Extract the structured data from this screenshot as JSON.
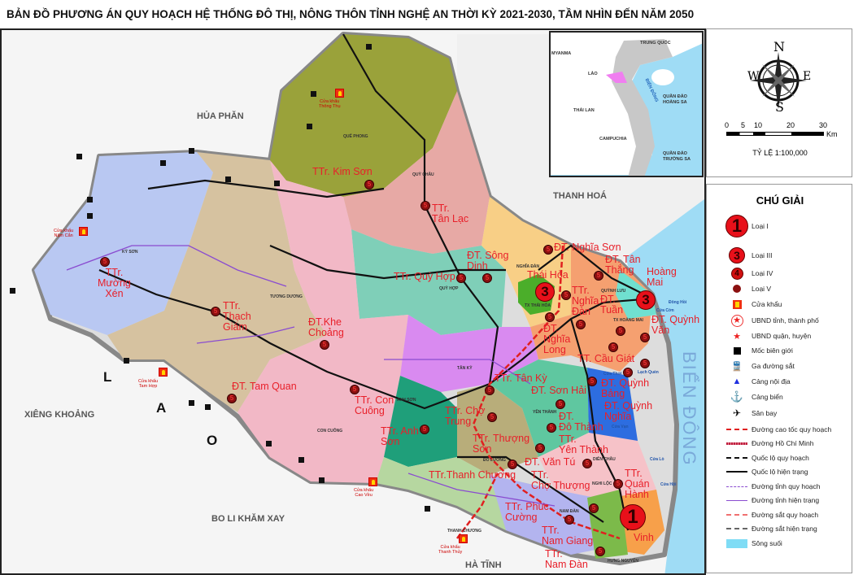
{
  "title": "BẢN ĐỒ PHƯƠNG ÁN QUY HOẠCH HỆ THỐNG ĐÔ THỊ, NÔNG THÔN TỈNH NGHỆ AN THỜI KỲ 2021-2030, TẦM NHÌN ĐẾN NĂM 2050",
  "neighbors": {
    "hua_phan": "HỦA PHĂN",
    "thanh_hoa": "THANH HOÁ",
    "xieng_khoang": "XIÊNG KHOẢNG",
    "bo_li": "BO LI KHĂM XAY",
    "ha_tinh": "HÀ TĨNH",
    "lao": [
      "L",
      "A",
      "O"
    ],
    "bien_dong": "BIỂN ĐÔNG"
  },
  "districts": [
    "QUẾ PHONG",
    "QUỲ CHÂU",
    "KỲ SƠN",
    "TƯƠNG DƯƠNG",
    "QUỲ HỢP",
    "NGHĨA ĐÀN",
    "TX THÁI HÒA",
    "TX HOÀNG MAI",
    "QUỲNH LƯU",
    "TÂN KỲ",
    "CON CUÔNG",
    "ANH SƠN",
    "YÊN THÀNH",
    "ĐÔ LƯƠNG",
    "THANH CHƯƠNG",
    "NAM ĐÀN",
    "NGHI LỘC",
    "DIỄN CHÂU",
    "HƯNG NGUYÊN"
  ],
  "coast": [
    "Đông Hồi",
    "Cửa Cờn",
    "Lạch Quèn",
    "Cửa Thơi",
    "Cửa Vạn",
    "Cửa Lò",
    "Cửa Hội"
  ],
  "gates": [
    "Cửa khẩu\nThông Thụ",
    "Cửa khẩu\nNậm Cắn",
    "Cửa khẩu\nTam Hợp",
    "Cửa khẩu\nCao Vều",
    "Cửa khẩu\nThanh Thủy"
  ],
  "towns": [
    {
      "name": "TTr. Kim Sơn",
      "type": "5"
    },
    {
      "name": "TTr.\nTân Lạc",
      "type": "5"
    },
    {
      "name": "TTr.\nMường\nXén",
      "type": "5"
    },
    {
      "name": "TTr.\nThạch\nGiám",
      "type": "5"
    },
    {
      "name": "ĐT.Khe\nChoảng",
      "type": "5"
    },
    {
      "name": "ĐT. Tam Quan",
      "type": "5"
    },
    {
      "name": "TTr. Quỳ Hợp",
      "type": "5"
    },
    {
      "name": "ĐT. Sông\nDinh",
      "type": "5"
    },
    {
      "name": "ĐT. Nghĩa Sơn",
      "type": "5"
    },
    {
      "name": "Thái Hòa",
      "type": "3"
    },
    {
      "name": "ĐT. Tân\nThắng",
      "type": "5"
    },
    {
      "name": "Hoàng\nMai",
      "type": "3"
    },
    {
      "name": "TTr.\nNghĩa\nĐàn",
      "type": "5"
    },
    {
      "name": "ĐT.\nNghĩa\nLong",
      "type": "5"
    },
    {
      "name": "ĐT.\nTuần",
      "type": "5"
    },
    {
      "name": "ĐT. Quỳnh\nVăn",
      "type": "5"
    },
    {
      "name": "ĐT. Quỳnh\nBảng",
      "type": "5"
    },
    {
      "name": "ĐT. Quỳnh\nNghĩa",
      "type": "5"
    },
    {
      "name": "TT. Cầu Giát",
      "type": "5"
    },
    {
      "name": "ĐT. Sơn Hải",
      "type": "5"
    },
    {
      "name": "ĐT.\nĐô Thành",
      "type": "5"
    },
    {
      "name": "TTr. Con\nCuông",
      "type": "5"
    },
    {
      "name": "TTr. Anh\nSơn",
      "type": "5"
    },
    {
      "name": "TTr. Tân Kỳ",
      "type": "5"
    },
    {
      "name": "TTr. Chợ\nTrung",
      "type": "5"
    },
    {
      "name": "TTr.\nYên Thành",
      "type": "5"
    },
    {
      "name": "ĐT. Văn Tú",
      "type": "5"
    },
    {
      "name": "TTr. Thượng\nSơn",
      "type": "5"
    },
    {
      "name": "TTr.Thanh Chương",
      "type": "5"
    },
    {
      "name": "TTr.\nChợ Thượng",
      "type": "5"
    },
    {
      "name": "TTr.\nQuán\nHành",
      "type": "5"
    },
    {
      "name": "TTr.\nNam Giang",
      "type": "5"
    },
    {
      "name": "TTr.\nNam Đàn",
      "type": "5"
    },
    {
      "name": "TTr. Phúc\nCường",
      "type": "5"
    },
    {
      "name": "Vinh",
      "type": "1"
    }
  ],
  "inset": {
    "trung_quoc": "TRUNG QUỐC",
    "myanma": "MYANMA",
    "lao": "LÀO",
    "thai_lan": "THÁI LAN",
    "campuchia": "CAMPUCHIA",
    "bien_dong": "BIỂN ĐÔNG",
    "hoang_sa": "QUẦN ĐẢO\nHOÀNG SA",
    "truong_sa": "QUẦN ĐẢO\nTRƯỜNG SA",
    "colors": {
      "sea": "#9fdcf5",
      "vietnam": "#c8c8c8",
      "nghe_an": "#f07ef0"
    }
  },
  "compass": {
    "n": "N",
    "s": "S",
    "e": "E",
    "w": "W"
  },
  "scale": {
    "ticks": [
      "0",
      "5",
      "10",
      "20",
      "30"
    ],
    "unit": "Km",
    "ratio": "TỶ LỆ 1:100,000"
  },
  "legend": {
    "title": "CHÚ GIẢI",
    "items": [
      {
        "label": "Loại I",
        "icon": "urban-type-1"
      },
      {
        "label": "Loại III",
        "icon": "urban-type-3"
      },
      {
        "label": "Loại IV",
        "icon": "urban-type-4"
      },
      {
        "label": "Loại V",
        "icon": "urban-type-5"
      },
      {
        "label": "Cửa khẩu",
        "icon": "border-gate"
      },
      {
        "label": "UBND tỉnh, thành phố",
        "icon": "star-circle"
      },
      {
        "label": "UBND quận, huyện",
        "icon": "star"
      },
      {
        "label": "Mốc biên giới",
        "icon": "black-square"
      },
      {
        "label": "Ga đường sắt",
        "icon": "train"
      },
      {
        "label": "Cảng nội địa",
        "icon": "inland-port"
      },
      {
        "label": "Cảng biển",
        "icon": "anchor"
      },
      {
        "label": "Sân bay",
        "icon": "airplane"
      },
      {
        "label": "Đường cao tốc quy hoạch",
        "icon": "line-red-dashed"
      },
      {
        "label": "Đường Hồ Chí Minh",
        "icon": "line-red-hatched"
      },
      {
        "label": "Quốc lộ quy hoạch",
        "icon": "line-black-dashed"
      },
      {
        "label": "Quốc lộ hiện trạng",
        "icon": "line-black"
      },
      {
        "label": "Đường tỉnh quy hoạch",
        "icon": "line-purple-dashed"
      },
      {
        "label": "Đường tỉnh hiện trạng",
        "icon": "line-purple"
      },
      {
        "label": "Đường sắt quy hoạch",
        "icon": "line-rail-planned"
      },
      {
        "label": "Đường sắt hiện trạng",
        "icon": "line-rail"
      },
      {
        "label": "Sông suối",
        "icon": "river-fill"
      }
    ]
  },
  "colors": {
    "town_red": "#e8202a",
    "sea": "#9fdcf5",
    "border": "#888888"
  }
}
